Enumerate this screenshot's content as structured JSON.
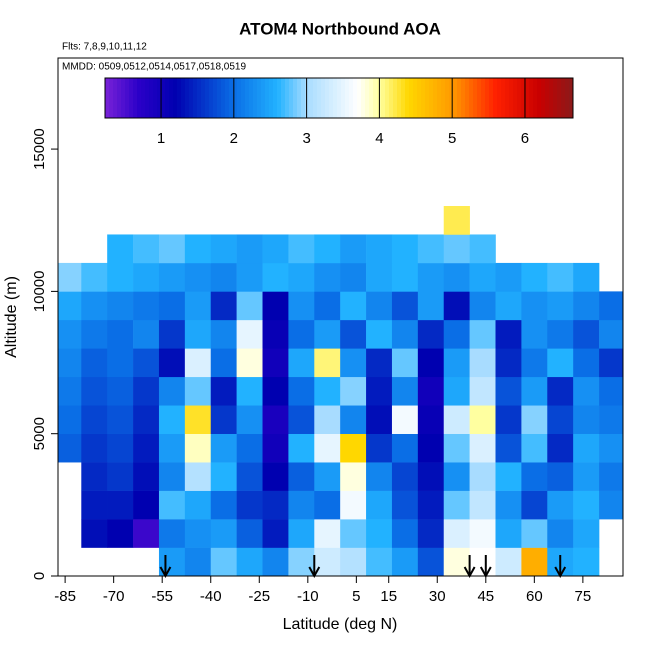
{
  "chart_data": {
    "type": "curtain",
    "title": "ATOM4 Northbound AOA",
    "subtitles": [
      "Flts: 7,8,9,10,11,12",
      "MMDD: 0509,0512,0514,0517,0518,0519"
    ],
    "x_label": "Latitude (deg N)",
    "y_label": "Altitude (m)",
    "xlim": [
      -87.2,
      87.4
    ],
    "ylim": [
      0,
      18200
    ],
    "xticks": [
      -85,
      -70,
      -55,
      -40,
      -25,
      -10,
      5,
      15,
      30,
      45,
      60,
      75
    ],
    "yticks": [
      0,
      5000,
      10000,
      15000
    ],
    "xbins": [
      -88,
      -80,
      -72,
      -64,
      -56,
      -48,
      -40,
      -32,
      -24,
      -16,
      -8,
      0,
      8,
      16,
      24,
      32,
      40,
      48,
      56,
      64,
      72,
      80,
      88
    ],
    "ybins": [
      0,
      1000,
      2000,
      3000,
      4000,
      5000,
      6000,
      7000,
      8000,
      9000,
      10000,
      11000,
      12000,
      13000
    ],
    "z": [
      [
        null,
        null,
        null,
        null,
        2.4,
        2.2,
        2.8,
        2.5,
        2.2,
        2.9,
        3.3,
        3.1,
        2.7,
        2.4,
        1.8,
        3.8,
        3.7,
        3.3,
        4.8,
        2.5,
        2.6,
        null
      ],
      [
        null,
        1.3,
        1.2,
        0.6,
        2.1,
        2.3,
        2.4,
        1.9,
        1.4,
        2.5,
        3.5,
        2.8,
        2.6,
        2.0,
        1.5,
        3.4,
        3.6,
        2.5,
        2.8,
        2.2,
        2.5,
        null
      ],
      [
        null,
        1.4,
        1.4,
        1.2,
        2.7,
        2.5,
        2.0,
        1.6,
        1.5,
        2.2,
        2.0,
        3.6,
        2.5,
        1.8,
        1.4,
        2.8,
        3.2,
        2.3,
        1.7,
        2.4,
        2.6,
        2.2
      ],
      [
        null,
        1.5,
        1.6,
        1.3,
        2.2,
        3.1,
        2.6,
        1.8,
        1.2,
        1.9,
        2.4,
        3.8,
        2.2,
        1.7,
        1.3,
        2.3,
        3.0,
        2.6,
        2.0,
        1.9,
        2.4,
        2.1
      ],
      [
        1.9,
        1.6,
        1.7,
        1.4,
        2.4,
        3.9,
        2.4,
        2.0,
        1.0,
        2.6,
        3.5,
        4.4,
        1.6,
        2.0,
        1.2,
        2.8,
        3.4,
        1.8,
        2.7,
        1.5,
        2.5,
        2.3
      ],
      [
        2.0,
        1.7,
        1.8,
        1.5,
        2.6,
        4.3,
        1.6,
        2.3,
        0.9,
        1.8,
        3.0,
        2.2,
        1.3,
        3.6,
        1.1,
        3.3,
        4.0,
        1.6,
        2.9,
        1.7,
        2.2,
        2.1
      ],
      [
        2.1,
        1.8,
        1.9,
        1.6,
        2.2,
        2.8,
        1.4,
        2.6,
        1.2,
        2.0,
        2.6,
        2.9,
        1.4,
        2.2,
        1.0,
        2.5,
        3.2,
        1.8,
        2.4,
        1.5,
        2.3,
        2.0
      ],
      [
        2.2,
        1.9,
        2.0,
        1.8,
        1.3,
        3.4,
        2.0,
        3.8,
        1.0,
        2.5,
        4.1,
        2.3,
        1.5,
        2.8,
        1.2,
        2.4,
        3.0,
        1.5,
        2.1,
        2.6,
        2.0,
        1.6
      ],
      [
        2.3,
        2.1,
        2.0,
        2.2,
        1.6,
        2.5,
        2.2,
        3.5,
        1.1,
        2.0,
        2.4,
        1.8,
        2.6,
        2.2,
        1.5,
        2.0,
        2.8,
        1.4,
        2.3,
        2.1,
        1.8,
        2.2
      ],
      [
        2.5,
        2.3,
        2.2,
        2.1,
        2.0,
        2.4,
        1.5,
        2.8,
        1.2,
        2.3,
        2.0,
        2.6,
        2.2,
        1.8,
        2.4,
        1.3,
        2.2,
        2.5,
        2.3,
        2.4,
        2.2,
        2.0
      ],
      [
        2.9,
        2.7,
        2.6,
        2.5,
        2.4,
        2.3,
        2.2,
        2.4,
        2.6,
        2.5,
        2.3,
        2.2,
        2.5,
        2.6,
        2.4,
        2.3,
        2.5,
        2.4,
        2.6,
        2.7,
        2.5,
        null
      ],
      [
        null,
        null,
        2.6,
        2.7,
        2.8,
        2.6,
        2.5,
        2.4,
        2.5,
        2.7,
        2.6,
        2.4,
        2.5,
        2.6,
        2.7,
        2.8,
        2.7,
        null,
        null,
        null,
        null,
        null
      ],
      [
        null,
        null,
        null,
        null,
        null,
        null,
        null,
        null,
        null,
        null,
        null,
        null,
        null,
        null,
        null,
        4.2,
        null,
        null,
        null,
        null,
        null,
        null
      ]
    ],
    "arrows": [
      -54,
      -8,
      40,
      45,
      68
    ],
    "colorbar": {
      "clim": [
        0.23,
        6.66
      ],
      "ticks": [
        1,
        2,
        3,
        4,
        5,
        6
      ],
      "stops": [
        [
          0.23,
          "#7a22d8"
        ],
        [
          0.7,
          "#2a00c8"
        ],
        [
          1.2,
          "#0000b0"
        ],
        [
          2.0,
          "#0a6ee6"
        ],
        [
          2.6,
          "#22b2ff"
        ],
        [
          3.0,
          "#a8dcff"
        ],
        [
          3.7,
          "#ffffff"
        ],
        [
          4.0,
          "#ffffa0"
        ],
        [
          4.4,
          "#ffd700"
        ],
        [
          5.0,
          "#ff9a00"
        ],
        [
          5.6,
          "#ff2000"
        ],
        [
          6.2,
          "#c80000"
        ],
        [
          6.66,
          "#8b1a1a"
        ]
      ]
    }
  }
}
